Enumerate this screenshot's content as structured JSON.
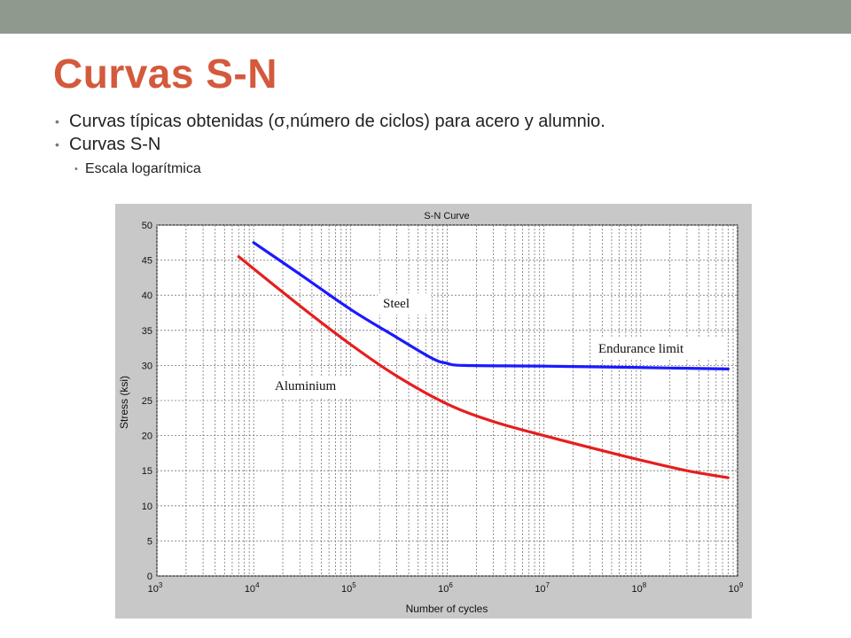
{
  "slide": {
    "title": "Curvas S-N",
    "bullets": [
      "Curvas típicas obtenidas (σ,número de ciclos) para acero y alumnio.",
      "Curvas S-N"
    ],
    "sub_bullets": [
      "Escala logarítmica"
    ]
  },
  "colors": {
    "title": "#d35a3c",
    "steel": "#1a1aff",
    "aluminium": "#e61e1e",
    "chart_bg": "#c8c8c8",
    "plot_bg": "#ffffff"
  },
  "chart_data": {
    "type": "line",
    "title": "S-N Curve",
    "xlabel": "Number of cycles",
    "ylabel": "Stress (ksi)",
    "xscale": "log",
    "xlim": [
      1000,
      1000000000
    ],
    "ylim": [
      0,
      50
    ],
    "xticks": [
      {
        "base": "10",
        "exp": "3"
      },
      {
        "base": "10",
        "exp": "4"
      },
      {
        "base": "10",
        "exp": "5"
      },
      {
        "base": "10",
        "exp": "6"
      },
      {
        "base": "10",
        "exp": "7"
      },
      {
        "base": "10",
        "exp": "8"
      },
      {
        "base": "10",
        "exp": "9"
      }
    ],
    "yticks": [
      "0",
      "5",
      "10",
      "15",
      "20",
      "25",
      "30",
      "35",
      "40",
      "45",
      "50"
    ],
    "grid": true,
    "series": [
      {
        "name": "Steel",
        "color": "#1a1aff",
        "x": [
          10000,
          30000,
          100000,
          300000,
          700000,
          1000000,
          1500000,
          10000000,
          100000000,
          800000000
        ],
        "y": [
          47.5,
          43.0,
          38.0,
          34.0,
          31.0,
          30.3,
          30.0,
          29.9,
          29.7,
          29.5
        ]
      },
      {
        "name": "Aluminium",
        "color": "#e61e1e",
        "x": [
          7000,
          30000,
          100000,
          300000,
          1000000,
          3000000,
          10000000,
          30000000,
          100000000,
          300000000,
          800000000
        ],
        "y": [
          45.5,
          38.5,
          33.0,
          28.5,
          24.5,
          22.0,
          20.0,
          18.3,
          16.5,
          15.0,
          14.0
        ]
      }
    ],
    "annotations": [
      "Steel",
      "Aluminium",
      "Endurance limit"
    ]
  }
}
